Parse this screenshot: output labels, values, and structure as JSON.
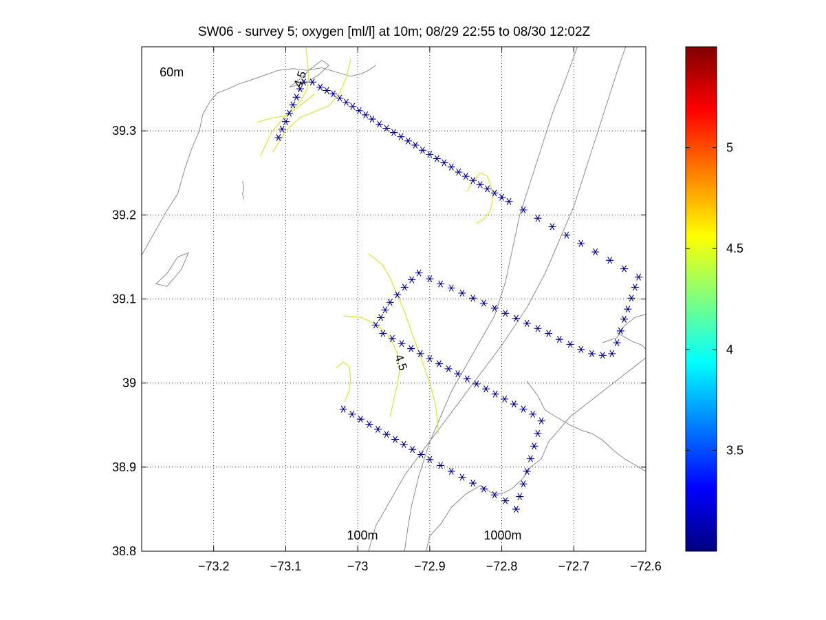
{
  "chart_data": {
    "type": "scatter",
    "title": "SW06 - survey 5; oxygen [ml/l] at 10m; 08/29 22:55 to 08/30 12:02Z",
    "xlabel": "",
    "ylabel": "",
    "xlim": [
      -73.3,
      -72.6
    ],
    "ylim": [
      38.8,
      39.4
    ],
    "xticks": [
      -73.2,
      -73.1,
      -73.0,
      -72.9,
      -72.8,
      -72.7,
      -72.6
    ],
    "xtick_labels": [
      "−73.2",
      "−73.1",
      "−73",
      "−72.9",
      "−72.8",
      "−72.7",
      "−72.6"
    ],
    "yticks": [
      38.8,
      38.9,
      39.0,
      39.1,
      39.2,
      39.3
    ],
    "ytick_labels": [
      "38.8",
      "38.9",
      "39",
      "39.1",
      "39.2",
      "39.3"
    ],
    "grid": true,
    "marker": "*",
    "marker_color": "#00008b",
    "contour_color": "#d8e63a",
    "bathymetry_color": "#8c8c8c",
    "colorbar": {
      "colormap": "jet",
      "range": [
        3.0,
        5.5
      ],
      "ticks": [
        3.5,
        4,
        4.5,
        5
      ],
      "tick_labels": [
        "3.5",
        "4",
        "4.5",
        "5"
      ]
    },
    "depth_labels": [
      {
        "text": "60m",
        "x": -73.275,
        "y": 39.365
      },
      {
        "text": "100m",
        "x": -73.015,
        "y": 38.814
      },
      {
        "text": "1000m",
        "x": -72.825,
        "y": 38.814
      }
    ],
    "contour_labels": [
      {
        "text": "4.5",
        "x": -73.075,
        "y": 39.36,
        "rotate": -70
      },
      {
        "text": "4.5",
        "x": -72.945,
        "y": 39.023,
        "rotate": 70
      }
    ],
    "stations": [
      [
        -73.11,
        39.292
      ],
      [
        -73.105,
        39.302
      ],
      [
        -73.1,
        39.311
      ],
      [
        -73.095,
        39.321
      ],
      [
        -73.09,
        39.331
      ],
      [
        -73.085,
        39.34
      ],
      [
        -73.08,
        39.35
      ],
      [
        -73.075,
        39.358
      ],
      [
        -73.063,
        39.358
      ],
      [
        -73.052,
        39.352
      ],
      [
        -73.043,
        39.348
      ],
      [
        -73.034,
        39.344
      ],
      [
        -73.025,
        39.339
      ],
      [
        -73.016,
        39.334
      ],
      [
        -73.007,
        39.329
      ],
      [
        -72.998,
        39.324
      ],
      [
        -72.989,
        39.319
      ],
      [
        -72.98,
        39.314
      ],
      [
        -72.97,
        39.308
      ],
      [
        -72.96,
        39.303
      ],
      [
        -72.95,
        39.298
      ],
      [
        -72.94,
        39.293
      ],
      [
        -72.93,
        39.288
      ],
      [
        -72.92,
        39.283
      ],
      [
        -72.91,
        39.277
      ],
      [
        -72.9,
        39.272
      ],
      [
        -72.89,
        39.267
      ],
      [
        -72.88,
        39.262
      ],
      [
        -72.87,
        39.257
      ],
      [
        -72.86,
        39.251
      ],
      [
        -72.85,
        39.246
      ],
      [
        -72.84,
        39.241
      ],
      [
        -72.83,
        39.236
      ],
      [
        -72.82,
        39.231
      ],
      [
        -72.81,
        39.226
      ],
      [
        -72.8,
        39.221
      ],
      [
        -72.79,
        39.216
      ],
      [
        -72.77,
        39.206
      ],
      [
        -72.75,
        39.196
      ],
      [
        -72.73,
        39.186
      ],
      [
        -72.71,
        39.176
      ],
      [
        -72.69,
        39.166
      ],
      [
        -72.67,
        39.156
      ],
      [
        -72.65,
        39.146
      ],
      [
        -72.63,
        39.136
      ],
      [
        -72.61,
        39.126
      ],
      [
        -72.615,
        39.114
      ],
      [
        -72.62,
        39.101
      ],
      [
        -72.625,
        39.088
      ],
      [
        -72.63,
        39.076
      ],
      [
        -72.635,
        39.062
      ],
      [
        -72.64,
        39.048
      ],
      [
        -72.647,
        39.035
      ],
      [
        -72.66,
        39.033
      ],
      [
        -72.675,
        39.035
      ],
      [
        -72.69,
        39.04
      ],
      [
        -72.705,
        39.046
      ],
      [
        -72.72,
        39.052
      ],
      [
        -72.735,
        39.059
      ],
      [
        -72.75,
        39.065
      ],
      [
        -72.765,
        39.071
      ],
      [
        -72.78,
        39.077
      ],
      [
        -72.795,
        39.083
      ],
      [
        -72.81,
        39.089
      ],
      [
        -72.825,
        39.095
      ],
      [
        -72.84,
        39.101
      ],
      [
        -72.855,
        39.107
      ],
      [
        -72.87,
        39.113
      ],
      [
        -72.885,
        39.118
      ],
      [
        -72.9,
        39.124
      ],
      [
        -72.915,
        39.131
      ],
      [
        -72.925,
        39.123
      ],
      [
        -72.935,
        39.114
      ],
      [
        -72.945,
        39.105
      ],
      [
        -72.955,
        39.096
      ],
      [
        -72.962,
        39.087
      ],
      [
        -72.968,
        39.078
      ],
      [
        -72.975,
        39.069
      ],
      [
        -72.965,
        39.059
      ],
      [
        -72.952,
        39.053
      ],
      [
        -72.939,
        39.047
      ],
      [
        -72.926,
        39.041
      ],
      [
        -72.913,
        39.035
      ],
      [
        -72.9,
        39.029
      ],
      [
        -72.887,
        39.023
      ],
      [
        -72.874,
        39.017
      ],
      [
        -72.861,
        39.011
      ],
      [
        -72.848,
        39.005
      ],
      [
        -72.835,
        38.999
      ],
      [
        -72.822,
        38.993
      ],
      [
        -72.809,
        38.987
      ],
      [
        -72.796,
        38.981
      ],
      [
        -72.783,
        38.975
      ],
      [
        -72.77,
        38.969
      ],
      [
        -72.757,
        38.963
      ],
      [
        -72.745,
        38.955
      ],
      [
        -72.75,
        38.94
      ],
      [
        -72.755,
        38.925
      ],
      [
        -72.76,
        38.91
      ],
      [
        -72.765,
        38.895
      ],
      [
        -72.77,
        38.88
      ],
      [
        -72.775,
        38.865
      ],
      [
        -72.78,
        38.85
      ],
      [
        -72.795,
        38.86
      ],
      [
        -72.81,
        38.867
      ],
      [
        -72.825,
        38.874
      ],
      [
        -72.84,
        38.881
      ],
      [
        -72.855,
        38.888
      ],
      [
        -72.87,
        38.895
      ],
      [
        -72.885,
        38.902
      ],
      [
        -72.9,
        38.909
      ],
      [
        -72.912,
        38.915
      ],
      [
        -72.924,
        38.921
      ],
      [
        -72.936,
        38.927
      ],
      [
        -72.948,
        38.933
      ],
      [
        -72.96,
        38.939
      ],
      [
        -72.972,
        38.945
      ],
      [
        -72.984,
        38.951
      ],
      [
        -72.996,
        38.957
      ],
      [
        -73.008,
        38.963
      ],
      [
        -73.02,
        38.969
      ]
    ],
    "oxygen_contours": [
      [
        [
          -73.14,
          39.31
        ],
        [
          -73.12,
          39.315
        ],
        [
          -73.1,
          39.318
        ],
        [
          -73.08,
          39.33
        ],
        [
          -73.06,
          39.344
        ]
      ],
      [
        [
          -73.135,
          39.27
        ],
        [
          -73.12,
          39.298
        ],
        [
          -73.1,
          39.318
        ],
        [
          -73.08,
          39.335
        ],
        [
          -73.07,
          39.35
        ],
        [
          -73.068,
          39.365
        ],
        [
          -73.07,
          39.385
        ],
        [
          -73.072,
          39.4
        ]
      ],
      [
        [
          -73.118,
          39.275
        ],
        [
          -73.1,
          39.3
        ],
        [
          -73.08,
          39.316
        ],
        [
          -73.06,
          39.323
        ],
        [
          -73.04,
          39.33
        ],
        [
          -73.025,
          39.345
        ],
        [
          -73.015,
          39.365
        ],
        [
          -73.01,
          39.385
        ]
      ],
      [
        [
          -72.82,
          39.246
        ],
        [
          -72.815,
          39.235
        ],
        [
          -72.812,
          39.22
        ],
        [
          -72.816,
          39.205
        ],
        [
          -72.825,
          39.195
        ],
        [
          -72.835,
          39.19
        ]
      ],
      [
        [
          -72.82,
          39.246
        ],
        [
          -72.83,
          39.25
        ],
        [
          -72.84,
          39.24
        ],
        [
          -72.848,
          39.228
        ]
      ],
      [
        [
          -72.985,
          39.154
        ],
        [
          -72.965,
          39.14
        ],
        [
          -72.955,
          39.125
        ],
        [
          -72.945,
          39.105
        ],
        [
          -72.935,
          39.085
        ],
        [
          -72.925,
          39.06
        ],
        [
          -72.912,
          39.03
        ],
        [
          -72.9,
          39.0
        ],
        [
          -72.892,
          38.975
        ],
        [
          -72.89,
          38.96
        ],
        [
          -72.888,
          38.94
        ]
      ],
      [
        [
          -73.02,
          39.08
        ],
        [
          -72.995,
          39.078
        ],
        [
          -72.975,
          39.07
        ],
        [
          -72.96,
          39.06
        ],
        [
          -72.95,
          39.045
        ],
        [
          -72.945,
          39.035
        ],
        [
          -72.942,
          39.015
        ],
        [
          -72.945,
          38.998
        ],
        [
          -72.95,
          38.98
        ],
        [
          -72.955,
          38.96
        ]
      ],
      [
        [
          -73.03,
          39.018
        ],
        [
          -73.02,
          39.025
        ],
        [
          -73.012,
          39.02
        ],
        [
          -73.01,
          39.005
        ],
        [
          -73.012,
          38.99
        ],
        [
          -73.018,
          38.978
        ]
      ]
    ],
    "bathymetry": [
      [
        [
          -73.3,
          39.152
        ],
        [
          -73.285,
          39.175
        ],
        [
          -73.265,
          39.205
        ],
        [
          -73.25,
          39.225
        ],
        [
          -73.24,
          39.255
        ],
        [
          -73.23,
          39.28
        ],
        [
          -73.22,
          39.3
        ],
        [
          -73.215,
          39.32
        ],
        [
          -73.205,
          39.335
        ],
        [
          -73.195,
          39.345
        ],
        [
          -73.18,
          39.35
        ],
        [
          -73.165,
          39.356
        ],
        [
          -73.15,
          39.36
        ],
        [
          -73.13,
          39.366
        ],
        [
          -73.11,
          39.372
        ],
        [
          -73.09,
          39.374
        ],
        [
          -73.07,
          39.372
        ],
        [
          -73.05,
          39.375
        ],
        [
          -73.03,
          39.37
        ],
        [
          -73.01,
          39.365
        ],
        [
          -72.995,
          39.368
        ],
        [
          -72.985,
          39.372
        ],
        [
          -72.975,
          39.378
        ]
      ],
      [
        [
          -73.095,
          39.352
        ],
        [
          -73.08,
          39.362
        ],
        [
          -73.065,
          39.374
        ],
        [
          -73.05,
          39.384
        ],
        [
          -73.04,
          39.378
        ],
        [
          -73.055,
          39.366
        ],
        [
          -73.075,
          39.356
        ],
        [
          -73.095,
          39.352
        ]
      ],
      [
        [
          -73.25,
          39.15
        ],
        [
          -73.265,
          39.13
        ],
        [
          -73.28,
          39.118
        ],
        [
          -73.265,
          39.115
        ],
        [
          -73.245,
          39.135
        ],
        [
          -73.235,
          39.155
        ],
        [
          -73.25,
          39.15
        ]
      ],
      [
        [
          -73.16,
          39.24
        ],
        [
          -73.158,
          39.232
        ],
        [
          -73.16,
          39.225
        ],
        [
          -73.158,
          39.219
        ]
      ],
      [
        [
          -72.935,
          38.8
        ],
        [
          -72.93,
          38.83
        ],
        [
          -72.925,
          38.855
        ],
        [
          -72.915,
          38.89
        ],
        [
          -72.9,
          38.93
        ],
        [
          -72.885,
          38.96
        ],
        [
          -72.87,
          38.99
        ],
        [
          -72.85,
          39.02
        ],
        [
          -72.83,
          39.05
        ],
        [
          -72.81,
          39.08
        ],
        [
          -72.795,
          39.12
        ],
        [
          -72.785,
          39.16
        ],
        [
          -72.775,
          39.2
        ],
        [
          -72.76,
          39.24
        ],
        [
          -72.745,
          39.28
        ],
        [
          -72.73,
          39.32
        ],
        [
          -72.712,
          39.36
        ],
        [
          -72.695,
          39.4
        ]
      ],
      [
        [
          -72.985,
          38.8
        ],
        [
          -72.975,
          38.83
        ],
        [
          -72.955,
          38.86
        ],
        [
          -72.935,
          38.89
        ],
        [
          -72.905,
          38.925
        ],
        [
          -72.87,
          38.965
        ],
        [
          -72.835,
          39.005
        ],
        [
          -72.8,
          39.045
        ],
        [
          -72.765,
          39.09
        ],
        [
          -72.74,
          39.13
        ],
        [
          -72.72,
          39.17
        ],
        [
          -72.7,
          39.21
        ],
        [
          -72.685,
          39.25
        ],
        [
          -72.67,
          39.29
        ],
        [
          -72.655,
          39.33
        ],
        [
          -72.64,
          39.37
        ],
        [
          -72.628,
          39.4
        ]
      ],
      [
        [
          -72.905,
          38.8
        ],
        [
          -72.9,
          38.818
        ],
        [
          -72.885,
          38.832
        ],
        [
          -72.87,
          38.852
        ],
        [
          -72.85,
          38.868
        ],
        [
          -72.83,
          38.878
        ],
        [
          -72.815,
          38.87
        ],
        [
          -72.8,
          38.868
        ],
        [
          -72.785,
          38.875
        ],
        [
          -72.77,
          38.887
        ],
        [
          -72.76,
          38.9
        ],
        [
          -72.745,
          38.91
        ],
        [
          -72.735,
          38.93
        ],
        [
          -72.72,
          38.945
        ],
        [
          -72.705,
          38.96
        ],
        [
          -72.69,
          38.97
        ],
        [
          -72.675,
          38.98
        ],
        [
          -72.66,
          38.99
        ],
        [
          -72.645,
          39.0
        ],
        [
          -72.63,
          39.01
        ],
        [
          -72.615,
          39.02
        ],
        [
          -72.6,
          39.03
        ]
      ],
      [
        [
          -72.765,
          39.002
        ],
        [
          -72.75,
          38.985
        ],
        [
          -72.74,
          38.968
        ],
        [
          -72.725,
          38.96
        ],
        [
          -72.705,
          38.95
        ],
        [
          -72.69,
          38.944
        ],
        [
          -72.675,
          38.94
        ],
        [
          -72.66,
          38.932
        ],
        [
          -72.645,
          38.92
        ],
        [
          -72.63,
          38.91
        ],
        [
          -72.61,
          38.9
        ],
        [
          -72.6,
          38.895
        ]
      ],
      [
        [
          -72.66,
          39.048
        ],
        [
          -72.64,
          39.054
        ],
        [
          -72.63,
          39.068
        ],
        [
          -72.615,
          39.078
        ],
        [
          -72.6,
          39.082
        ]
      ],
      [
        [
          -72.64,
          39.06
        ],
        [
          -72.62,
          39.05
        ],
        [
          -72.605,
          39.045
        ],
        [
          -72.6,
          39.04
        ]
      ]
    ]
  }
}
